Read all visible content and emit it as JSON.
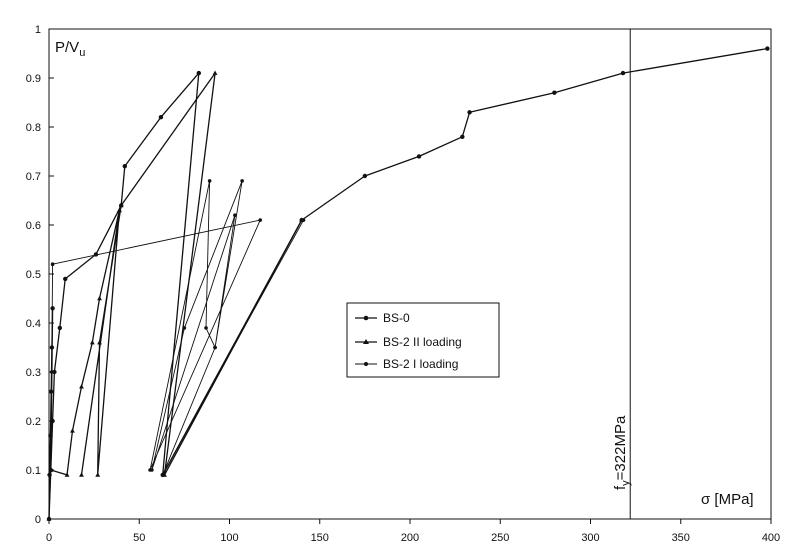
{
  "chart_data": {
    "type": "line",
    "xlabel": "σ [MPa]",
    "ylabel": "P/V",
    "ylabel_sub": "u",
    "xlim": [
      0,
      400
    ],
    "ylim": [
      0,
      1
    ],
    "x_ticks": [
      0,
      50,
      100,
      150,
      200,
      250,
      300,
      350,
      400
    ],
    "y_ticks": [
      0,
      0.1,
      0.2,
      0.3,
      0.4,
      0.5,
      0.6,
      0.7,
      0.8,
      0.9,
      1
    ],
    "grid": false,
    "legend_position": "center",
    "annotation": {
      "text_prefix": "f",
      "text_sub": "y",
      "text_suffix": "=322MPa",
      "x": 322
    },
    "series": [
      {
        "name": "BS-0",
        "stroke_width": 1.3,
        "points": [
          [
            0,
            0
          ],
          [
            0.3,
            0.09
          ],
          [
            0.8,
            0.17
          ],
          [
            1.2,
            0.26
          ],
          [
            1.6,
            0.35
          ],
          [
            2.0,
            0.43
          ],
          [
            1,
            0.1
          ],
          [
            2,
            0.2
          ],
          [
            3,
            0.3
          ],
          [
            6,
            0.39
          ],
          [
            9,
            0.49
          ],
          [
            26,
            0.54
          ],
          [
            40,
            0.64
          ],
          [
            42,
            0.72
          ],
          [
            62,
            0.82
          ],
          [
            83,
            0.91
          ],
          [
            63,
            0.09
          ],
          [
            140,
            0.61
          ],
          [
            175,
            0.7
          ],
          [
            205,
            0.74
          ],
          [
            229,
            0.78
          ],
          [
            233,
            0.83
          ],
          [
            280,
            0.87
          ],
          [
            318,
            0.91
          ],
          [
            398,
            0.96
          ]
        ]
      },
      {
        "name": "BS-2 II loading",
        "stroke_width": 1.3,
        "points": [
          [
            0,
            0
          ],
          [
            1,
            0.1
          ],
          [
            10,
            0.09
          ],
          [
            13,
            0.18
          ],
          [
            18,
            0.27
          ],
          [
            24,
            0.36
          ],
          [
            28,
            0.45
          ],
          [
            39,
            0.63
          ],
          [
            18,
            0.09
          ],
          [
            39,
            0.63
          ],
          [
            27,
            0.09
          ],
          [
            28,
            0.36
          ],
          [
            40,
            0.64
          ],
          [
            92,
            0.91
          ],
          [
            64,
            0.09
          ],
          [
            140,
            0.61
          ]
        ]
      },
      {
        "name": "BS-2 I loading",
        "stroke_width": 0.9,
        "points": [
          [
            0,
            0
          ],
          [
            1,
            0.1
          ],
          [
            1.5,
            0.3
          ],
          [
            2,
            0.52
          ],
          [
            117,
            0.61
          ],
          [
            56,
            0.1
          ],
          [
            89,
            0.69
          ],
          [
            87,
            0.39
          ],
          [
            92,
            0.35
          ],
          [
            107,
            0.69
          ],
          [
            75,
            0.39
          ],
          [
            57,
            0.1
          ],
          [
            103,
            0.62
          ],
          [
            92,
            0.35
          ],
          [
            63,
            0.09
          ],
          [
            141,
            0.61
          ]
        ]
      }
    ]
  }
}
